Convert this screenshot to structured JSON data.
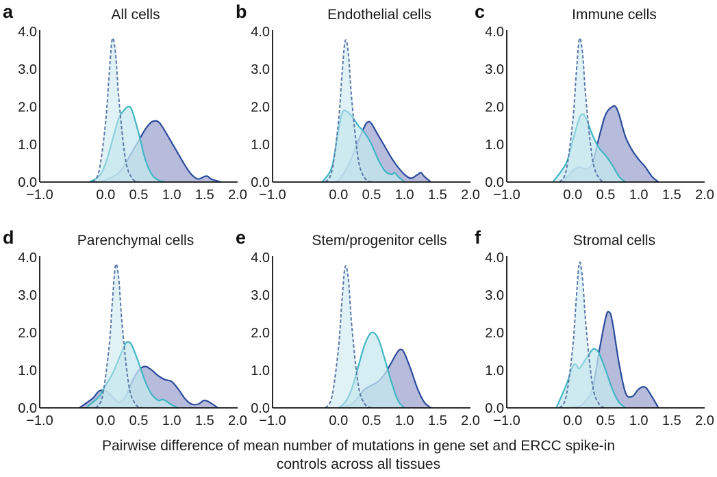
{
  "xlabel_lines": [
    "Pairwise difference of mean number of mutations in gene set and ERCC spike-in",
    "controls across all tissues"
  ],
  "colors": {
    "dark_fill": "#aab0d6",
    "dark_line": "#2a4a9a",
    "light_fill": "#c6e8ef",
    "light_line": "#3fb6c4",
    "dash_line": "#5a78a8"
  },
  "chart_data": [
    {
      "type": "area",
      "letter": "a",
      "title": "All cells",
      "x_ticks": [
        -1.0,
        0.0,
        0.5,
        1.0,
        1.5,
        2.0
      ],
      "x_tick_labels": [
        "−1.0",
        "0.0",
        "0.5",
        "1.0",
        "1.5",
        "2.0"
      ],
      "y_ticks": [
        0.0,
        1.0,
        2.0,
        3.0,
        4.0
      ],
      "y_tick_labels": [
        "0.0",
        "1.0",
        "2.0",
        "3.0",
        "4.0"
      ],
      "xlim": [
        -1.0,
        2.0
      ],
      "ylim": [
        0.0,
        4.0
      ],
      "series": [
        {
          "style": "dark",
          "x": [
            -0.15,
            0.0,
            0.2,
            0.3,
            0.4,
            0.5,
            0.6,
            0.7,
            0.8,
            0.9,
            1.0,
            1.1,
            1.2,
            1.3,
            1.4,
            1.5,
            1.55,
            1.6,
            1.75
          ],
          "y": [
            0.0,
            0.05,
            0.25,
            0.5,
            0.8,
            1.1,
            1.4,
            1.6,
            1.6,
            1.35,
            1.05,
            0.75,
            0.45,
            0.2,
            0.08,
            0.15,
            0.15,
            0.08,
            0.0
          ]
        },
        {
          "style": "light",
          "x": [
            -0.25,
            -0.1,
            0.0,
            0.1,
            0.2,
            0.3,
            0.35,
            0.4,
            0.5,
            0.6,
            0.7,
            0.8,
            0.9
          ],
          "y": [
            0.0,
            0.15,
            0.5,
            1.1,
            1.7,
            1.95,
            2.0,
            1.9,
            1.3,
            0.6,
            0.2,
            0.05,
            0.0
          ]
        },
        {
          "style": "dash",
          "x": [
            -0.2,
            -0.1,
            0.0,
            0.05,
            0.1,
            0.15,
            0.2,
            0.3,
            0.4,
            0.5
          ],
          "y": [
            0.0,
            0.3,
            1.6,
            2.8,
            3.8,
            3.4,
            2.2,
            0.6,
            0.1,
            0.0
          ]
        }
      ]
    },
    {
      "type": "area",
      "letter": "b",
      "title": "Endothelial cells",
      "x_ticks": [
        -1.0,
        0.0,
        0.5,
        1.0,
        1.5,
        2.0
      ],
      "x_tick_labels": [
        "−1.0",
        "0.0",
        "0.5",
        "1.0",
        "1.5",
        "2.0"
      ],
      "y_ticks": [
        0.0,
        1.0,
        2.0,
        3.0,
        4.0
      ],
      "y_tick_labels": [
        "0.0",
        "1.0",
        "2.0",
        "3.0",
        "4.0"
      ],
      "xlim": [
        -1.0,
        2.0
      ],
      "ylim": [
        0.0,
        4.0
      ],
      "series": [
        {
          "style": "dark",
          "x": [
            -0.1,
            0.0,
            0.1,
            0.2,
            0.3,
            0.4,
            0.45,
            0.5,
            0.6,
            0.7,
            0.8,
            0.9,
            1.0,
            1.1,
            1.2,
            1.25,
            1.3,
            1.4
          ],
          "y": [
            0.0,
            0.05,
            0.3,
            0.65,
            1.1,
            1.5,
            1.6,
            1.55,
            1.25,
            0.95,
            0.65,
            0.4,
            0.2,
            0.1,
            0.2,
            0.25,
            0.15,
            0.0
          ]
        },
        {
          "style": "light",
          "x": [
            -0.25,
            -0.1,
            0.0,
            0.05,
            0.1,
            0.2,
            0.3,
            0.4,
            0.5,
            0.6,
            0.7,
            0.8,
            0.85,
            0.9,
            1.0
          ],
          "y": [
            0.0,
            0.4,
            1.4,
            1.8,
            1.9,
            1.75,
            1.5,
            1.3,
            1.0,
            0.6,
            0.3,
            0.2,
            0.25,
            0.15,
            0.0
          ]
        },
        {
          "style": "dash",
          "x": [
            -0.2,
            -0.1,
            0.0,
            0.05,
            0.1,
            0.15,
            0.2,
            0.3,
            0.4,
            0.5
          ],
          "y": [
            0.0,
            0.3,
            1.6,
            2.8,
            3.75,
            3.4,
            2.2,
            0.6,
            0.1,
            0.0
          ]
        }
      ]
    },
    {
      "type": "area",
      "letter": "c",
      "title": "Immune cells",
      "x_ticks": [
        -1.0,
        0.0,
        0.5,
        1.0,
        1.5,
        2.0
      ],
      "x_tick_labels": [
        "−1.0",
        "0.0",
        "0.5",
        "1.0",
        "1.5",
        "2.0"
      ],
      "y_ticks": [
        0.0,
        1.0,
        2.0,
        3.0,
        4.0
      ],
      "y_tick_labels": [
        "0.0",
        "1.0",
        "2.0",
        "3.0",
        "4.0"
      ],
      "xlim": [
        -1.0,
        2.0
      ],
      "ylim": [
        0.0,
        4.0
      ],
      "series": [
        {
          "style": "dark",
          "x": [
            -0.2,
            -0.1,
            0.0,
            0.1,
            0.2,
            0.3,
            0.4,
            0.5,
            0.6,
            0.65,
            0.7,
            0.8,
            0.9,
            1.0,
            1.1,
            1.2,
            1.3
          ],
          "y": [
            0.0,
            0.1,
            0.3,
            0.4,
            0.35,
            0.5,
            1.2,
            1.8,
            2.0,
            2.0,
            1.8,
            1.2,
            0.85,
            0.6,
            0.4,
            0.15,
            0.0
          ]
        },
        {
          "style": "light",
          "x": [
            -0.3,
            -0.1,
            0.0,
            0.1,
            0.15,
            0.2,
            0.3,
            0.4,
            0.5,
            0.6,
            0.7,
            0.8
          ],
          "y": [
            0.0,
            0.5,
            1.1,
            1.7,
            1.8,
            1.7,
            1.25,
            0.9,
            0.7,
            0.45,
            0.15,
            0.0
          ]
        },
        {
          "style": "dash",
          "x": [
            -0.2,
            -0.1,
            0.0,
            0.05,
            0.1,
            0.15,
            0.2,
            0.3,
            0.4,
            0.5
          ],
          "y": [
            0.0,
            0.3,
            1.6,
            2.8,
            3.8,
            3.4,
            2.2,
            0.6,
            0.1,
            0.0
          ]
        }
      ]
    },
    {
      "type": "area",
      "letter": "d",
      "title": "Parenchymal cells",
      "x_ticks": [
        -1.0,
        0.0,
        0.5,
        1.0,
        1.5,
        2.0
      ],
      "x_tick_labels": [
        "−1.0",
        "0.0",
        "0.5",
        "1.0",
        "1.5",
        "2.0"
      ],
      "y_ticks": [
        0.0,
        1.0,
        2.0,
        3.0,
        4.0
      ],
      "y_tick_labels": [
        "0.0",
        "1.0",
        "2.0",
        "3.0",
        "4.0"
      ],
      "xlim": [
        -1.0,
        2.0
      ],
      "ylim": [
        0.0,
        4.0
      ],
      "series": [
        {
          "style": "dark",
          "x": [
            -0.4,
            -0.2,
            -0.1,
            0.0,
            0.1,
            0.2,
            0.3,
            0.4,
            0.5,
            0.6,
            0.7,
            0.8,
            0.9,
            1.0,
            1.1,
            1.2,
            1.3,
            1.4,
            1.5,
            1.6,
            1.7
          ],
          "y": [
            0.0,
            0.25,
            0.45,
            0.45,
            0.3,
            0.15,
            0.3,
            0.7,
            1.0,
            1.1,
            1.0,
            0.85,
            0.75,
            0.7,
            0.5,
            0.25,
            0.1,
            0.1,
            0.2,
            0.12,
            0.0
          ]
        },
        {
          "style": "light",
          "x": [
            -0.3,
            -0.1,
            0.0,
            0.1,
            0.2,
            0.3,
            0.35,
            0.4,
            0.5,
            0.6,
            0.7,
            0.8,
            0.85,
            0.9,
            1.0,
            1.1
          ],
          "y": [
            0.0,
            0.3,
            0.6,
            0.9,
            1.3,
            1.7,
            1.75,
            1.65,
            1.2,
            0.7,
            0.35,
            0.2,
            0.22,
            0.2,
            0.08,
            0.0
          ]
        },
        {
          "style": "dash",
          "x": [
            -0.15,
            -0.05,
            0.05,
            0.1,
            0.15,
            0.2,
            0.25,
            0.35,
            0.45,
            0.55
          ],
          "y": [
            0.0,
            0.3,
            1.6,
            2.8,
            3.8,
            3.4,
            2.2,
            0.6,
            0.1,
            0.0
          ]
        }
      ]
    },
    {
      "type": "area",
      "letter": "e",
      "title": "Stem/progenitor cells",
      "x_ticks": [
        -1.0,
        0.0,
        0.5,
        1.0,
        1.5,
        2.0
      ],
      "x_tick_labels": [
        "−1.0",
        "0.0",
        "0.5",
        "1.0",
        "1.5",
        "2.0"
      ],
      "y_ticks": [
        0.0,
        1.0,
        2.0,
        3.0,
        4.0
      ],
      "y_tick_labels": [
        "0.0",
        "1.0",
        "2.0",
        "3.0",
        "4.0"
      ],
      "xlim": [
        -1.0,
        2.0
      ],
      "ylim": [
        0.0,
        4.0
      ],
      "series": [
        {
          "style": "dark",
          "x": [
            0.0,
            0.2,
            0.3,
            0.4,
            0.5,
            0.6,
            0.7,
            0.8,
            0.9,
            0.95,
            1.0,
            1.1,
            1.2,
            1.3,
            1.4
          ],
          "y": [
            0.0,
            0.1,
            0.3,
            0.5,
            0.6,
            0.7,
            0.9,
            1.2,
            1.5,
            1.55,
            1.45,
            1.0,
            0.5,
            0.15,
            0.0
          ]
        },
        {
          "style": "light",
          "x": [
            0.0,
            0.1,
            0.2,
            0.3,
            0.4,
            0.5,
            0.6,
            0.7,
            0.8,
            0.9,
            1.0
          ],
          "y": [
            0.0,
            0.15,
            0.5,
            1.1,
            1.7,
            2.0,
            1.85,
            1.3,
            0.7,
            0.2,
            0.0
          ]
        },
        {
          "style": "dash",
          "x": [
            -0.2,
            -0.1,
            0.0,
            0.05,
            0.1,
            0.15,
            0.2,
            0.3,
            0.4,
            0.5
          ],
          "y": [
            0.0,
            0.3,
            1.6,
            2.8,
            3.75,
            3.4,
            2.2,
            0.6,
            0.1,
            0.0
          ]
        }
      ]
    },
    {
      "type": "area",
      "letter": "f",
      "title": "Stromal cells",
      "x_ticks": [
        -1.0,
        0.0,
        0.5,
        1.0,
        1.5,
        2.0
      ],
      "x_tick_labels": [
        "−1.0",
        "0.0",
        "0.5",
        "1.0",
        "1.5",
        "2.0"
      ],
      "y_ticks": [
        0.0,
        1.0,
        2.0,
        3.0,
        4.0
      ],
      "y_tick_labels": [
        "0.0",
        "1.0",
        "2.0",
        "3.0",
        "4.0"
      ],
      "xlim": [
        -1.0,
        2.0
      ],
      "ylim": [
        0.0,
        4.0
      ],
      "series": [
        {
          "style": "dark",
          "x": [
            -0.1,
            0.1,
            0.2,
            0.3,
            0.4,
            0.5,
            0.55,
            0.6,
            0.7,
            0.8,
            0.9,
            1.0,
            1.1,
            1.2,
            1.3
          ],
          "y": [
            0.0,
            0.05,
            0.2,
            0.5,
            1.5,
            2.4,
            2.55,
            2.3,
            1.2,
            0.4,
            0.3,
            0.5,
            0.55,
            0.3,
            0.0
          ]
        },
        {
          "style": "light",
          "x": [
            -0.25,
            -0.1,
            0.0,
            0.05,
            0.1,
            0.2,
            0.3,
            0.35,
            0.4,
            0.5,
            0.6,
            0.7,
            0.8
          ],
          "y": [
            0.0,
            0.6,
            1.1,
            1.15,
            1.05,
            1.3,
            1.55,
            1.55,
            1.45,
            1.0,
            0.5,
            0.15,
            0.0
          ]
        },
        {
          "style": "dash",
          "x": [
            -0.2,
            -0.1,
            0.0,
            0.05,
            0.1,
            0.15,
            0.2,
            0.3,
            0.4,
            0.5
          ],
          "y": [
            0.0,
            0.3,
            1.6,
            2.8,
            3.85,
            3.4,
            2.2,
            0.6,
            0.1,
            0.0
          ]
        }
      ]
    }
  ]
}
